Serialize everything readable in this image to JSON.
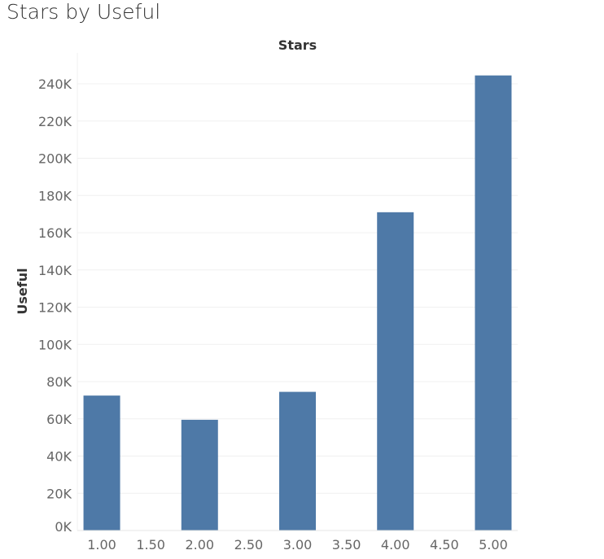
{
  "page_title": "Stars by Useful",
  "chart_data": {
    "type": "bar",
    "title": "Stars by Useful",
    "xlabel": "Stars",
    "ylabel": "Useful",
    "categories": [
      "1.00",
      "1.50",
      "2.00",
      "2.50",
      "3.00",
      "3.50",
      "4.00",
      "4.50",
      "5.00"
    ],
    "values": [
      72500,
      0,
      59500,
      0,
      74500,
      0,
      171000,
      0,
      244500
    ],
    "yticks": [
      0,
      20000,
      40000,
      60000,
      80000,
      100000,
      120000,
      140000,
      160000,
      180000,
      200000,
      220000,
      240000
    ],
    "ytick_labels": [
      "0K",
      "20K",
      "40K",
      "60K",
      "80K",
      "100K",
      "120K",
      "140K",
      "160K",
      "180K",
      "200K",
      "220K",
      "240K"
    ],
    "ylim": [
      0,
      250000
    ],
    "x_axis_position": "top",
    "grid": true,
    "bar_color": "#4e79a7"
  }
}
